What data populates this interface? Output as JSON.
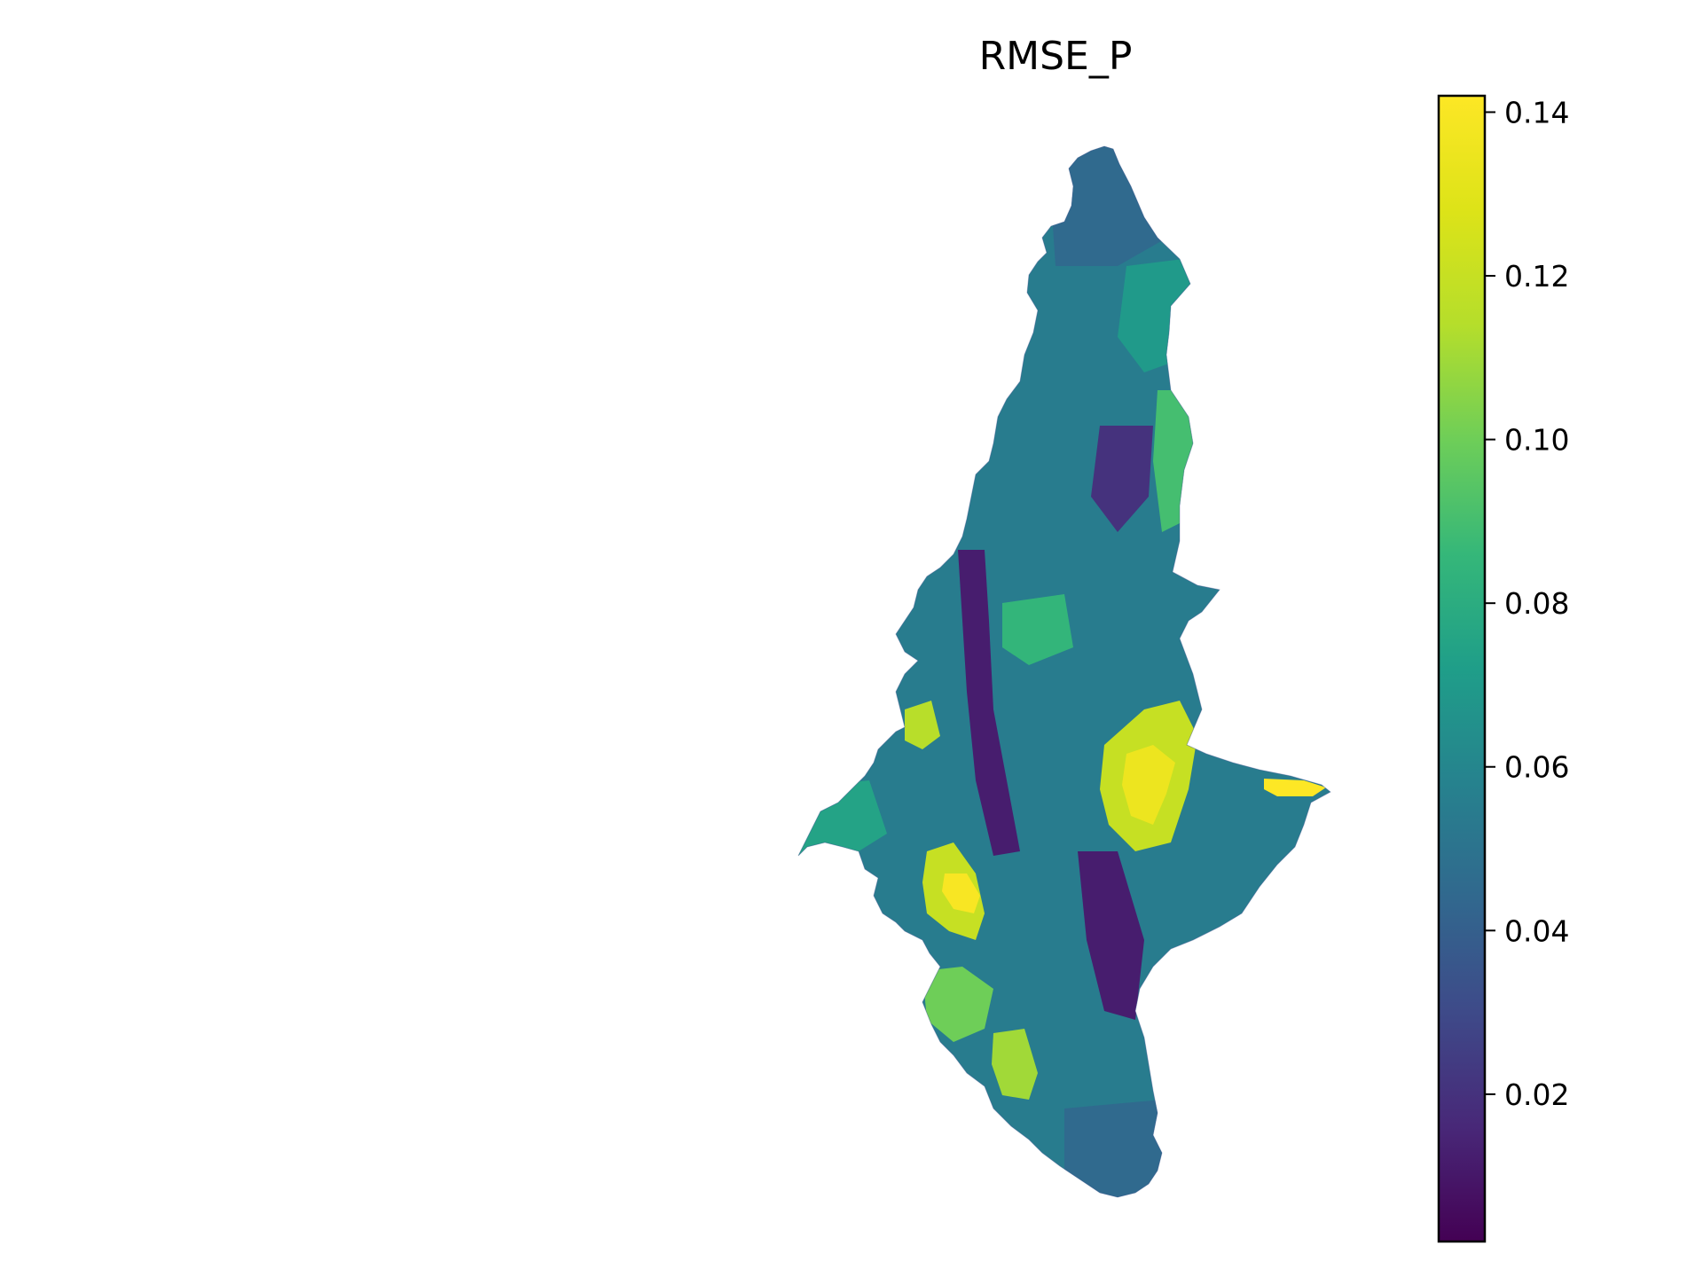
{
  "title": "RMSE_P",
  "colorbar": {
    "colormap": "viridis",
    "min": 0.002,
    "max": 0.142,
    "ticks": [
      {
        "value": 0.02,
        "label": "0.02"
      },
      {
        "value": 0.04,
        "label": "0.04"
      },
      {
        "value": 0.06,
        "label": "0.06"
      },
      {
        "value": 0.08,
        "label": "0.08"
      },
      {
        "value": 0.1,
        "label": "0.10"
      },
      {
        "value": 0.12,
        "label": "0.12"
      },
      {
        "value": 0.14,
        "label": "0.14"
      }
    ]
  },
  "map": {
    "background_value": 0.055,
    "regions": [
      {
        "name": "north-tip",
        "value": 0.045
      },
      {
        "name": "north-east",
        "value": 0.07
      },
      {
        "name": "east-coast-upper",
        "value": 0.09
      },
      {
        "name": "west-valley-strip",
        "value": 0.012
      },
      {
        "name": "central-low-strip",
        "value": 0.02
      },
      {
        "name": "south-central-low",
        "value": 0.012
      },
      {
        "name": "east-hotspot-outer",
        "value": 0.12
      },
      {
        "name": "east-hotspot-core",
        "value": 0.135
      },
      {
        "name": "east-peninsula-tip",
        "value": 0.142
      },
      {
        "name": "southwest-hotspot-outer",
        "value": 0.12
      },
      {
        "name": "southwest-hotspot-core",
        "value": 0.14
      },
      {
        "name": "southwest-green",
        "value": 0.1
      },
      {
        "name": "south-green",
        "value": 0.11
      },
      {
        "name": "west-arm",
        "value": 0.075
      },
      {
        "name": "west-lobe-green",
        "value": 0.115
      },
      {
        "name": "center-green",
        "value": 0.085
      },
      {
        "name": "south-tail",
        "value": 0.045
      }
    ]
  }
}
